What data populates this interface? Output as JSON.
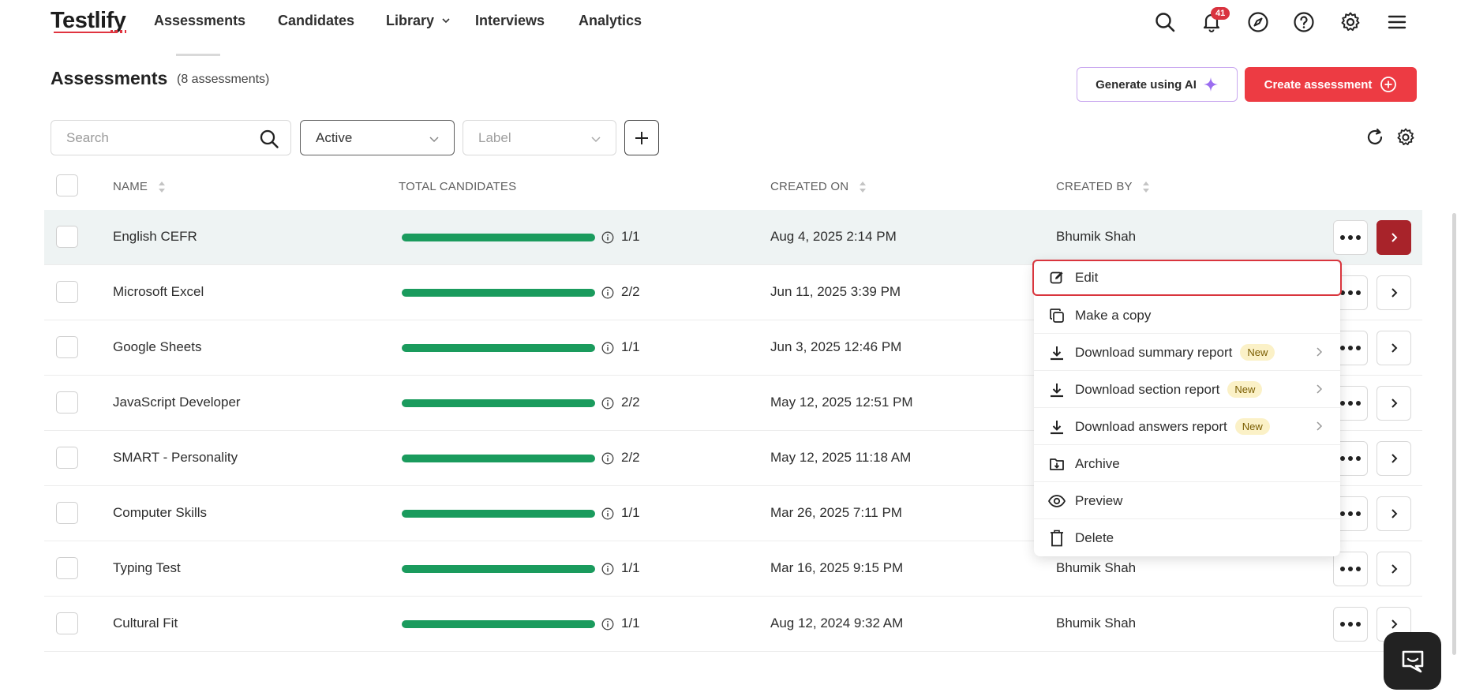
{
  "brand": {
    "logo_text": "Testlify"
  },
  "nav": {
    "items": [
      {
        "label": "Assessments"
      },
      {
        "label": "Candidates"
      },
      {
        "label": "Library"
      },
      {
        "label": "Interviews"
      },
      {
        "label": "Analytics"
      }
    ],
    "notification_count": "41"
  },
  "header": {
    "title": "Assessments",
    "count_text": "(8 assessments)",
    "generate_ai_label": "Generate using AI",
    "create_label": "Create assessment"
  },
  "filters": {
    "search_placeholder": "Search",
    "status_value": "Active",
    "label_placeholder": "Label"
  },
  "table": {
    "columns": {
      "name": "NAME",
      "total_candidates": "TOTAL CANDIDATES",
      "created_on": "CREATED ON",
      "created_by": "CREATED BY"
    },
    "rows": [
      {
        "name": "English CEFR",
        "ratio": "1/1",
        "progress": 1.0,
        "created_on": "Aug 4, 2025 2:14 PM",
        "created_by": "Bhumik Shah"
      },
      {
        "name": "Microsoft Excel",
        "ratio": "2/2",
        "progress": 1.0,
        "created_on": "Jun 11, 2025 3:39 PM",
        "created_by": ""
      },
      {
        "name": "Google Sheets",
        "ratio": "1/1",
        "progress": 1.0,
        "created_on": "Jun 3, 2025 12:46 PM",
        "created_by": ""
      },
      {
        "name": "JavaScript Developer",
        "ratio": "2/2",
        "progress": 1.0,
        "created_on": "May 12, 2025 12:51 PM",
        "created_by": ""
      },
      {
        "name": "SMART - Personality",
        "ratio": "2/2",
        "progress": 1.0,
        "created_on": "May 12, 2025 11:18 AM",
        "created_by": ""
      },
      {
        "name": "Computer Skills",
        "ratio": "1/1",
        "progress": 1.0,
        "created_on": "Mar 26, 2025 7:11 PM",
        "created_by": ""
      },
      {
        "name": "Typing Test",
        "ratio": "1/1",
        "progress": 1.0,
        "created_on": "Mar 16, 2025 9:15 PM",
        "created_by": "Bhumik Shah"
      },
      {
        "name": "Cultural Fit",
        "ratio": "1/1",
        "progress": 1.0,
        "created_on": "Aug 12, 2024 9:32 AM",
        "created_by": "Bhumik Shah"
      }
    ]
  },
  "menu": {
    "items": [
      {
        "label": "Edit",
        "icon": "edit-icon"
      },
      {
        "label": "Make a copy",
        "icon": "copy-icon"
      },
      {
        "label": "Download summary report",
        "icon": "download-icon",
        "badge": "New"
      },
      {
        "label": "Download section report",
        "icon": "download-icon",
        "badge": "New"
      },
      {
        "label": "Download answers report",
        "icon": "download-icon",
        "badge": "New"
      },
      {
        "label": "Archive",
        "icon": "archive-icon"
      },
      {
        "label": "Preview",
        "icon": "eye-icon"
      },
      {
        "label": "Delete",
        "icon": "trash-icon"
      }
    ]
  },
  "colors": {
    "accent_red": "#ed3b43",
    "progress_green": "#1a9b5d",
    "highlight_border": "#d9353d",
    "ai_border": "#c9a8ef"
  }
}
